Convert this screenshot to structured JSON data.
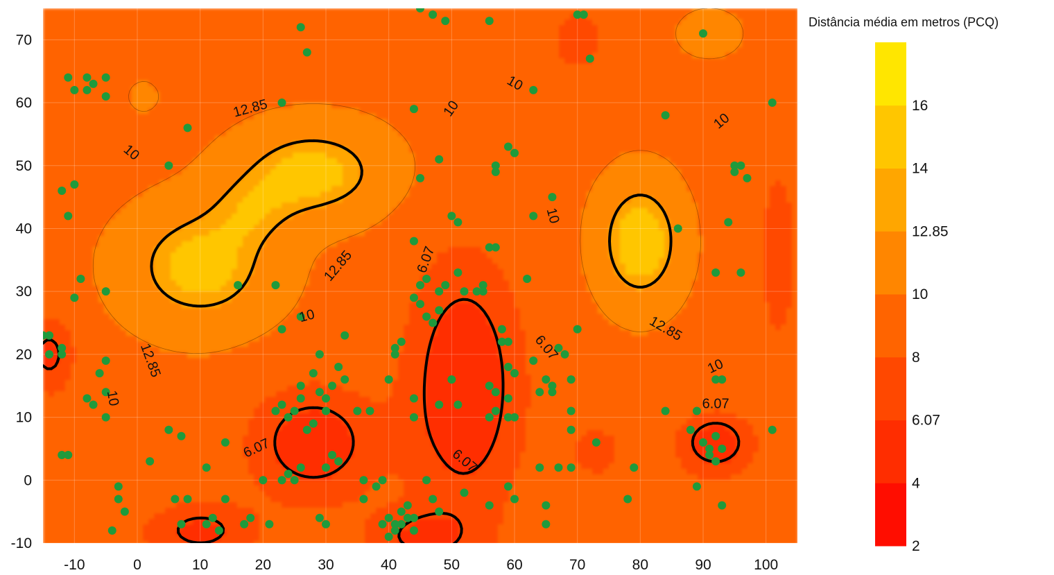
{
  "chart_data": {
    "type": "heatmap",
    "title": "",
    "xlabel": "",
    "ylabel": "",
    "x_ticks": [
      -10,
      0,
      10,
      20,
      30,
      40,
      50,
      60,
      70,
      80,
      90,
      100
    ],
    "y_ticks": [
      -10,
      0,
      10,
      20,
      30,
      40,
      50,
      60,
      70
    ],
    "xlim": [
      -15,
      105
    ],
    "ylim": [
      -10,
      75
    ],
    "legend": {
      "title": "Distância média em metros (PCQ)",
      "position": "right",
      "levels": [
        2,
        4,
        6.07,
        8,
        10,
        12.85,
        14,
        16
      ],
      "tick_labels": [
        "2",
        "4",
        "6.07",
        "8",
        "10",
        "12.85",
        "14",
        "16"
      ],
      "colors": [
        "#ff0d00",
        "#ff2d00",
        "#ff4800",
        "#ff6400",
        "#ff8600",
        "#ffa600",
        "#ffc600",
        "#ffe600"
      ]
    },
    "contour_labels": [
      {
        "text": "12.85",
        "x": 18,
        "y": 59,
        "angle": -15
      },
      {
        "text": "12.85",
        "x": 32,
        "y": 34,
        "angle": -50
      },
      {
        "text": "12.85",
        "x": 2,
        "y": 19,
        "angle": 70
      },
      {
        "text": "12.85",
        "x": 84,
        "y": 24,
        "angle": 30
      },
      {
        "text": "10",
        "x": -1,
        "y": 52,
        "angle": 40
      },
      {
        "text": "10",
        "x": 50,
        "y": 59,
        "angle": -55
      },
      {
        "text": "10",
        "x": 60,
        "y": 63,
        "angle": 30
      },
      {
        "text": "10",
        "x": 66,
        "y": 42,
        "angle": 75
      },
      {
        "text": "10",
        "x": 93,
        "y": 57,
        "angle": -40
      },
      {
        "text": "10",
        "x": 27,
        "y": 26,
        "angle": -15
      },
      {
        "text": "10",
        "x": -4,
        "y": 13,
        "angle": 80
      },
      {
        "text": "10",
        "x": 92,
        "y": 18,
        "angle": -25
      },
      {
        "text": "6.07",
        "x": 46,
        "y": 35,
        "angle": -70
      },
      {
        "text": "6.07",
        "x": 19,
        "y": 5,
        "angle": -25
      },
      {
        "text": "6.07",
        "x": 52,
        "y": 3,
        "angle": 40
      },
      {
        "text": "6.07",
        "x": 65,
        "y": 21,
        "angle": 50
      },
      {
        "text": "6.07",
        "x": 92,
        "y": 12,
        "angle": 0
      }
    ],
    "fields": [
      {
        "x": 10,
        "y": 34,
        "sx": 11,
        "sy": 9,
        "a": 5.5
      },
      {
        "x": 28,
        "y": 49,
        "sx": 11,
        "sy": 7,
        "a": 5.5
      },
      {
        "x": 18,
        "y": 43,
        "sx": 7,
        "sy": 6,
        "a": 2.5
      },
      {
        "x": 80,
        "y": 38,
        "sx": 6,
        "sy": 9,
        "a": 6.5
      },
      {
        "x": 91,
        "y": 71,
        "sx": 4,
        "sy": 3,
        "a": 3.0
      },
      {
        "x": 1,
        "y": 61,
        "sx": 2,
        "sy": 2,
        "a": 2.0
      },
      {
        "x": 52,
        "y": 15,
        "sx": 9,
        "sy": 20,
        "a": -5.5
      },
      {
        "x": 28,
        "y": 6,
        "sx": 10,
        "sy": 9,
        "a": -5.0
      },
      {
        "x": 10,
        "y": -8,
        "sx": 9,
        "sy": 5,
        "a": -4.0
      },
      {
        "x": 45,
        "y": -9,
        "sx": 9,
        "sy": 5,
        "a": -3.5
      },
      {
        "x": 92,
        "y": 6,
        "sx": 6,
        "sy": 5,
        "a": -5.0
      },
      {
        "x": 70,
        "y": 70,
        "sx": 4,
        "sy": 5,
        "a": -3.0
      },
      {
        "x": -14,
        "y": 20,
        "sx": 4,
        "sy": 6,
        "a": -4.0
      },
      {
        "x": 102,
        "y": 36,
        "sx": 3,
        "sy": 14,
        "a": -3.0
      },
      {
        "x": 73,
        "y": 5,
        "sx": 6,
        "sy": 6,
        "a": -2.0
      }
    ],
    "field_base": 9.5,
    "points": [
      {
        "x": -11,
        "y": 64
      },
      {
        "x": -8,
        "y": 64
      },
      {
        "x": -7,
        "y": 63
      },
      {
        "x": -5,
        "y": 64
      },
      {
        "x": -10,
        "y": 62
      },
      {
        "x": -8,
        "y": 62
      },
      {
        "x": -5,
        "y": 61
      },
      {
        "x": -12,
        "y": 46
      },
      {
        "x": -10,
        "y": 47
      },
      {
        "x": -11,
        "y": 42
      },
      {
        "x": -9,
        "y": 32
      },
      {
        "x": -10,
        "y": 29
      },
      {
        "x": -5,
        "y": 30
      },
      {
        "x": -15,
        "y": 23
      },
      {
        "x": -14,
        "y": 23
      },
      {
        "x": -14,
        "y": 20
      },
      {
        "x": -12,
        "y": 20
      },
      {
        "x": -12,
        "y": 21
      },
      {
        "x": -5,
        "y": 19
      },
      {
        "x": -6,
        "y": 17
      },
      {
        "x": -8,
        "y": 13
      },
      {
        "x": -7,
        "y": 12
      },
      {
        "x": -5,
        "y": 14
      },
      {
        "x": -5,
        "y": 10
      },
      {
        "x": -12,
        "y": 4
      },
      {
        "x": -11,
        "y": 4
      },
      {
        "x": -3,
        "y": -1
      },
      {
        "x": -3,
        "y": -3
      },
      {
        "x": -2,
        "y": -5
      },
      {
        "x": -4,
        "y": -8
      },
      {
        "x": 2,
        "y": 3
      },
      {
        "x": 5,
        "y": 8
      },
      {
        "x": 7,
        "y": 7
      },
      {
        "x": 6,
        "y": -3
      },
      {
        "x": 8,
        "y": -3
      },
      {
        "x": 7,
        "y": -7
      },
      {
        "x": 11,
        "y": -7
      },
      {
        "x": 12,
        "y": -6
      },
      {
        "x": 13,
        "y": -8
      },
      {
        "x": 14,
        "y": 6
      },
      {
        "x": 14,
        "y": -3
      },
      {
        "x": 11,
        "y": 2
      },
      {
        "x": 17,
        "y": -7
      },
      {
        "x": 18,
        "y": -6
      },
      {
        "x": 20,
        "y": 0
      },
      {
        "x": 21,
        "y": -7
      },
      {
        "x": 22,
        "y": 11
      },
      {
        "x": 23,
        "y": 12
      },
      {
        "x": 24,
        "y": 10
      },
      {
        "x": 23,
        "y": 0
      },
      {
        "x": 24,
        "y": 1
      },
      {
        "x": 25,
        "y": 0
      },
      {
        "x": 26,
        "y": 15
      },
      {
        "x": 26,
        "y": 13
      },
      {
        "x": 25,
        "y": 11
      },
      {
        "x": 27,
        "y": 8
      },
      {
        "x": 28,
        "y": 17
      },
      {
        "x": 29,
        "y": 14
      },
      {
        "x": 29,
        "y": 20
      },
      {
        "x": 30,
        "y": 13
      },
      {
        "x": 30,
        "y": 11
      },
      {
        "x": 31,
        "y": 15
      },
      {
        "x": 32,
        "y": 18
      },
      {
        "x": 33,
        "y": 16
      },
      {
        "x": 31,
        "y": 4
      },
      {
        "x": 32,
        "y": 3
      },
      {
        "x": 30,
        "y": 2
      },
      {
        "x": 29,
        "y": -6
      },
      {
        "x": 30,
        "y": -7
      },
      {
        "x": 28,
        "y": 9
      },
      {
        "x": 26,
        "y": 2
      },
      {
        "x": 35,
        "y": 11
      },
      {
        "x": 36,
        "y": 0
      },
      {
        "x": 36,
        "y": -3
      },
      {
        "x": 38,
        "y": -1
      },
      {
        "x": 39,
        "y": 0
      },
      {
        "x": 40,
        "y": -6
      },
      {
        "x": 41,
        "y": -7
      },
      {
        "x": 42,
        "y": -5
      },
      {
        "x": 42,
        "y": -7
      },
      {
        "x": 43,
        "y": -4
      },
      {
        "x": 44,
        "y": -6
      },
      {
        "x": 44,
        "y": -8
      },
      {
        "x": 40,
        "y": -9
      },
      {
        "x": 39,
        "y": -7
      },
      {
        "x": 43,
        "y": -6
      },
      {
        "x": 44,
        "y": 10
      },
      {
        "x": 44,
        "y": 13
      },
      {
        "x": 40,
        "y": 16
      },
      {
        "x": 41,
        "y": 21
      },
      {
        "x": 42,
        "y": 22
      },
      {
        "x": 41,
        "y": 20
      },
      {
        "x": 44,
        "y": 29
      },
      {
        "x": 45,
        "y": 28
      },
      {
        "x": 45,
        "y": 31
      },
      {
        "x": 46,
        "y": 32
      },
      {
        "x": 47,
        "y": 25
      },
      {
        "x": 48,
        "y": 27
      },
      {
        "x": 48,
        "y": 30
      },
      {
        "x": 49,
        "y": 31
      },
      {
        "x": 48,
        "y": 12
      },
      {
        "x": 50,
        "y": 16
      },
      {
        "x": 51,
        "y": 12
      },
      {
        "x": 47,
        "y": -3
      },
      {
        "x": 48,
        "y": -5
      },
      {
        "x": 46,
        "y": 0
      },
      {
        "x": 50,
        "y": 42
      },
      {
        "x": 51,
        "y": 41
      },
      {
        "x": 51,
        "y": 33
      },
      {
        "x": 52,
        "y": 30
      },
      {
        "x": 54,
        "y": 30
      },
      {
        "x": 55,
        "y": 31
      },
      {
        "x": 56,
        "y": 37
      },
      {
        "x": 57,
        "y": 37
      },
      {
        "x": 56,
        "y": 15
      },
      {
        "x": 57,
        "y": 14
      },
      {
        "x": 56,
        "y": 10
      },
      {
        "x": 57,
        "y": 11
      },
      {
        "x": 59,
        "y": 18
      },
      {
        "x": 60,
        "y": 17
      },
      {
        "x": 59,
        "y": 13
      },
      {
        "x": 59,
        "y": 10
      },
      {
        "x": 60,
        "y": 10
      },
      {
        "x": 58,
        "y": 24
      },
      {
        "x": 58,
        "y": 22
      },
      {
        "x": 59,
        "y": 22
      },
      {
        "x": 60,
        "y": 52
      },
      {
        "x": 59,
        "y": 53
      },
      {
        "x": 57,
        "y": 49
      },
      {
        "x": 57,
        "y": 50
      },
      {
        "x": 63,
        "y": 42
      },
      {
        "x": 66,
        "y": 45
      },
      {
        "x": 63,
        "y": 62
      },
      {
        "x": 62,
        "y": 32
      },
      {
        "x": 63,
        "y": 19
      },
      {
        "x": 65,
        "y": 16
      },
      {
        "x": 66,
        "y": 15
      },
      {
        "x": 66,
        "y": 14
      },
      {
        "x": 64,
        "y": 14
      },
      {
        "x": 67,
        "y": 21
      },
      {
        "x": 69,
        "y": 16
      },
      {
        "x": 68,
        "y": 20
      },
      {
        "x": 69,
        "y": 11
      },
      {
        "x": 69,
        "y": 8
      },
      {
        "x": 64,
        "y": 2
      },
      {
        "x": 67,
        "y": 2
      },
      {
        "x": 69,
        "y": 2
      },
      {
        "x": 65,
        "y": -4
      },
      {
        "x": 65,
        "y": -7
      },
      {
        "x": 60,
        "y": -3
      },
      {
        "x": 59,
        "y": -1
      },
      {
        "x": 56,
        "y": -4
      },
      {
        "x": 52,
        "y": -2
      },
      {
        "x": 55,
        "y": 30
      },
      {
        "x": 70,
        "y": 24
      },
      {
        "x": 72,
        "y": 67
      },
      {
        "x": 70,
        "y": 74
      },
      {
        "x": 71,
        "y": 74
      },
      {
        "x": 73,
        "y": 6
      },
      {
        "x": 84,
        "y": 58
      },
      {
        "x": 86,
        "y": 40
      },
      {
        "x": 90,
        "y": 71
      },
      {
        "x": 92,
        "y": 33
      },
      {
        "x": 94,
        "y": 41
      },
      {
        "x": 95,
        "y": 49
      },
      {
        "x": 96,
        "y": 33
      },
      {
        "x": 95,
        "y": 50
      },
      {
        "x": 96,
        "y": 50
      },
      {
        "x": 97,
        "y": 48
      },
      {
        "x": 101,
        "y": 60
      },
      {
        "x": 101,
        "y": 8
      },
      {
        "x": 84,
        "y": 11
      },
      {
        "x": 79,
        "y": 2
      },
      {
        "x": 78,
        "y": -3
      },
      {
        "x": 88,
        "y": 8
      },
      {
        "x": 89,
        "y": 11
      },
      {
        "x": 90,
        "y": 6
      },
      {
        "x": 91,
        "y": 5
      },
      {
        "x": 91,
        "y": 4
      },
      {
        "x": 92,
        "y": 3
      },
      {
        "x": 92,
        "y": 7
      },
      {
        "x": 93,
        "y": 5
      },
      {
        "x": 92,
        "y": 16
      },
      {
        "x": 93,
        "y": 16
      },
      {
        "x": 89,
        "y": -1
      },
      {
        "x": 93,
        "y": -4
      },
      {
        "x": 45,
        "y": 75
      },
      {
        "x": 47,
        "y": 74
      },
      {
        "x": 49,
        "y": 73
      },
      {
        "x": 56,
        "y": 73
      },
      {
        "x": 26,
        "y": 72
      },
      {
        "x": 27,
        "y": 68
      },
      {
        "x": 8,
        "y": 56
      },
      {
        "x": 5,
        "y": 50
      },
      {
        "x": 23,
        "y": 60
      },
      {
        "x": 44,
        "y": 59
      },
      {
        "x": 45,
        "y": 48
      },
      {
        "x": 48,
        "y": 51
      },
      {
        "x": 44,
        "y": 38
      },
      {
        "x": 16,
        "y": 31
      },
      {
        "x": 22,
        "y": 31
      },
      {
        "x": 26,
        "y": 26
      },
      {
        "x": 23,
        "y": 24
      },
      {
        "x": 33,
        "y": 23
      },
      {
        "x": 46,
        "y": 26
      },
      {
        "x": 37,
        "y": 11
      },
      {
        "x": 41,
        "y": -8
      }
    ]
  }
}
